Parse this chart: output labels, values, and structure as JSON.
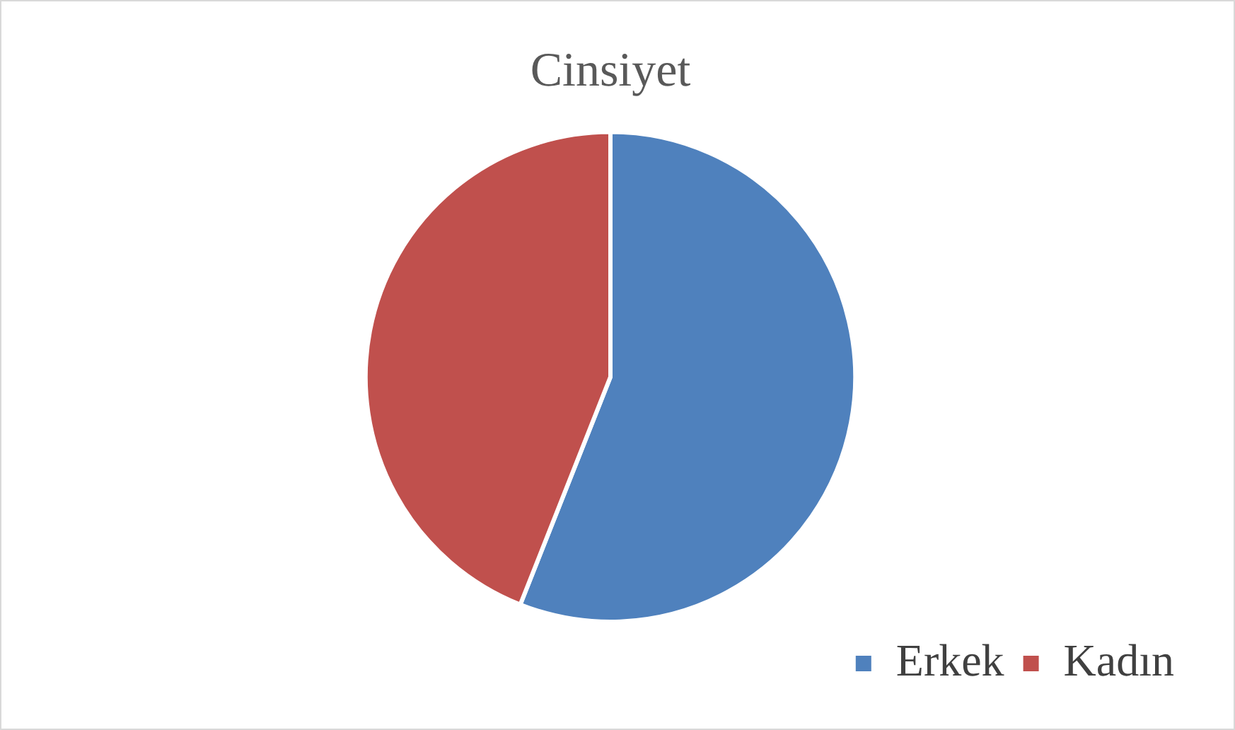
{
  "chart_data": {
    "type": "pie",
    "title": "Cinsiyet",
    "categories": [
      "Erkek",
      "Kadın"
    ],
    "values": [
      56,
      44
    ],
    "colors": [
      "#4f81bd",
      "#c0504d"
    ],
    "legend": "bottom right"
  }
}
